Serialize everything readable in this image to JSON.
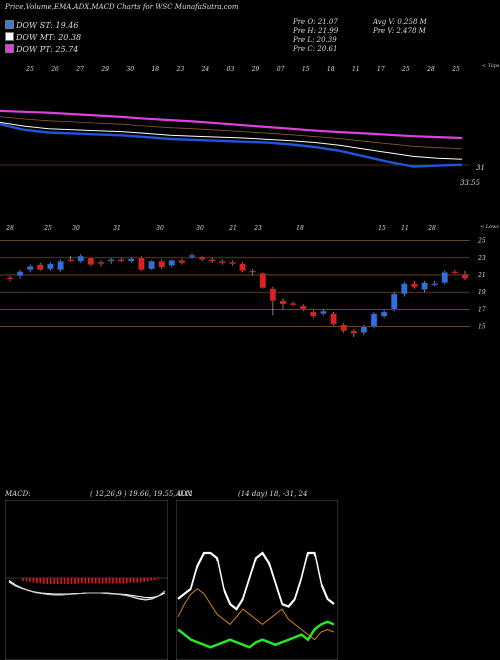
{
  "header": {
    "title": "Price,Volume,EMA,ADX,MACD Charts for WSC MunafaSutra.com",
    "pre_open": "Pre  O: 21.07",
    "pre_high": "Pre  H: 21.99",
    "pre_low": "Pre  L: 20.39",
    "pre_close": "Pre  C: 20.61",
    "avg_volume": "Avg V: 0.258  M",
    "pre_volume": "Pre  V: 2.478  M"
  },
  "legend": [
    {
      "label": "DOW ST: 19.46",
      "color": "#3a7bd5"
    },
    {
      "label": "DOW MT: 20.38",
      "color": "#ffffff"
    },
    {
      "label": "DOW PT: 25.74",
      "color": "#e040e0"
    }
  ],
  "colors": {
    "up": "#2f6fe0",
    "down": "#e02020",
    "ema_st": "#1e56d8",
    "ema_pt": "#e040e0",
    "macd_hist": "#e01818",
    "adx_pdi": "#22ee22",
    "adx_ndi": "#d08018"
  },
  "ema_panel": {
    "corner_label": "< Tops",
    "date_labels": [
      "25",
      "26",
      "27",
      "29",
      "30",
      "18",
      "23",
      "24",
      "03",
      "29",
      "07",
      "15",
      "18",
      "11",
      "17",
      "25",
      "28",
      "25"
    ],
    "right_labels": [
      "31",
      "33.55"
    ],
    "chart_data": {
      "type": "line",
      "series": [
        {
          "name": "DOW PT: 25.74",
          "values": [
            39.5,
            39.3,
            39.1,
            38.8,
            38.5,
            38.2,
            37.8,
            37.5,
            37.2,
            36.8,
            36.4,
            36.0,
            35.6,
            35.2,
            34.9,
            34.6,
            34.3,
            34.0,
            33.8,
            33.6
          ]
        },
        {
          "name": "DOW MT: 20.38",
          "values": [
            37.0,
            36.2,
            35.6,
            35.4,
            35.2,
            35.0,
            34.6,
            34.2,
            34.0,
            33.8,
            33.6,
            33.3,
            33.0,
            32.6,
            32.0,
            31.2,
            30.4,
            29.6,
            29.2,
            29.0
          ]
        },
        {
          "name": "DOW ST: 19.46",
          "values": [
            36.6,
            35.4,
            34.8,
            34.6,
            34.4,
            34.2,
            33.8,
            33.4,
            33.2,
            33.0,
            32.8,
            32.6,
            32.2,
            31.6,
            30.8,
            29.6,
            28.4,
            27.4,
            27.6,
            27.8
          ]
        }
      ]
    }
  },
  "price_panel": {
    "corner_label": "< Lows",
    "y_ticks": [
      "25",
      "23",
      "21",
      "19",
      "17",
      "15"
    ],
    "date_labels": [
      "28",
      "25",
      "30",
      "31",
      "30",
      "30",
      "21",
      "23",
      "18",
      "15",
      "11",
      "28"
    ],
    "chart_data": {
      "type": "candlestick",
      "ylim": [
        13.5,
        26
      ],
      "candles": [
        {
          "o": 20.5,
          "c": 20.7,
          "h": 20.9,
          "l": 20.3,
          "up": false
        },
        {
          "o": 20.9,
          "c": 21.4,
          "h": 21.6,
          "l": 20.6,
          "up": true
        },
        {
          "o": 21.6,
          "c": 22.0,
          "h": 22.2,
          "l": 21.3,
          "up": true
        },
        {
          "o": 22.2,
          "c": 21.6,
          "h": 22.4,
          "l": 21.5,
          "up": false
        },
        {
          "o": 21.7,
          "c": 22.3,
          "h": 22.5,
          "l": 21.5,
          "up": true
        },
        {
          "o": 21.6,
          "c": 22.6,
          "h": 22.8,
          "l": 21.4,
          "up": true
        },
        {
          "o": 22.8,
          "c": 22.7,
          "h": 23.2,
          "l": 22.5,
          "up": false
        },
        {
          "o": 23.2,
          "c": 22.6,
          "h": 23.4,
          "l": 22.4,
          "up": true
        },
        {
          "o": 23.0,
          "c": 22.2,
          "h": 23.1,
          "l": 22.0,
          "up": false
        },
        {
          "o": 22.3,
          "c": 22.5,
          "h": 22.7,
          "l": 22.0,
          "up": false
        },
        {
          "o": 22.6,
          "c": 22.8,
          "h": 23.0,
          "l": 22.3,
          "up": true
        },
        {
          "o": 22.8,
          "c": 22.7,
          "h": 23.0,
          "l": 22.5,
          "up": false
        },
        {
          "o": 22.6,
          "c": 22.9,
          "h": 23.0,
          "l": 22.4,
          "up": true
        },
        {
          "o": 23.0,
          "c": 21.6,
          "h": 23.2,
          "l": 21.5,
          "up": false
        },
        {
          "o": 21.7,
          "c": 22.6,
          "h": 22.7,
          "l": 21.6,
          "up": true
        },
        {
          "o": 22.6,
          "c": 21.9,
          "h": 22.8,
          "l": 21.7,
          "up": false
        },
        {
          "o": 22.1,
          "c": 22.7,
          "h": 22.8,
          "l": 21.9,
          "up": true
        },
        {
          "o": 22.7,
          "c": 22.4,
          "h": 22.9,
          "l": 22.2,
          "up": false
        },
        {
          "o": 23.1,
          "c": 23.3,
          "h": 23.5,
          "l": 22.9,
          "up": true
        },
        {
          "o": 23.1,
          "c": 22.8,
          "h": 23.2,
          "l": 22.6,
          "up": false
        },
        {
          "o": 22.8,
          "c": 22.6,
          "h": 23.0,
          "l": 22.4,
          "up": false
        },
        {
          "o": 22.6,
          "c": 22.4,
          "h": 22.8,
          "l": 22.2,
          "up": false
        },
        {
          "o": 22.5,
          "c": 22.3,
          "h": 22.7,
          "l": 22.1,
          "up": false
        },
        {
          "o": 22.3,
          "c": 21.5,
          "h": 22.5,
          "l": 21.3,
          "up": false
        },
        {
          "o": 21.5,
          "c": 21.3,
          "h": 21.7,
          "l": 21.0,
          "up": false
        },
        {
          "o": 21.2,
          "c": 19.5,
          "h": 21.3,
          "l": 19.4,
          "up": false
        },
        {
          "o": 19.4,
          "c": 18.0,
          "h": 19.6,
          "l": 16.3,
          "up": false
        },
        {
          "o": 18.0,
          "c": 17.6,
          "h": 18.3,
          "l": 17.0,
          "up": false
        },
        {
          "o": 17.7,
          "c": 17.6,
          "h": 17.9,
          "l": 17.4,
          "up": false
        },
        {
          "o": 17.4,
          "c": 17.0,
          "h": 17.6,
          "l": 16.8,
          "up": false
        },
        {
          "o": 16.7,
          "c": 16.2,
          "h": 16.9,
          "l": 16.0,
          "up": false
        },
        {
          "o": 16.8,
          "c": 16.5,
          "h": 17.0,
          "l": 16.3,
          "up": true
        },
        {
          "o": 16.5,
          "c": 15.3,
          "h": 16.7,
          "l": 15.1,
          "up": false
        },
        {
          "o": 15.2,
          "c": 14.5,
          "h": 15.4,
          "l": 14.3,
          "up": false
        },
        {
          "o": 14.5,
          "c": 14.2,
          "h": 14.7,
          "l": 13.8,
          "up": false
        },
        {
          "o": 14.3,
          "c": 15.0,
          "h": 15.2,
          "l": 14.0,
          "up": true
        },
        {
          "o": 15.0,
          "c": 16.5,
          "h": 16.7,
          "l": 14.8,
          "up": true
        },
        {
          "o": 16.2,
          "c": 16.7,
          "h": 16.9,
          "l": 16.0,
          "up": true
        },
        {
          "o": 17.0,
          "c": 18.8,
          "h": 19.0,
          "l": 16.8,
          "up": true
        },
        {
          "o": 18.8,
          "c": 20.0,
          "h": 20.2,
          "l": 18.5,
          "up": true
        },
        {
          "o": 20.0,
          "c": 19.6,
          "h": 20.3,
          "l": 19.4,
          "up": false
        },
        {
          "o": 19.3,
          "c": 20.1,
          "h": 20.3,
          "l": 19.0,
          "up": true
        },
        {
          "o": 20.0,
          "c": 20.0,
          "h": 20.3,
          "l": 19.7,
          "up": true
        },
        {
          "o": 20.1,
          "c": 21.3,
          "h": 21.5,
          "l": 19.9,
          "up": true
        },
        {
          "o": 21.4,
          "c": 21.3,
          "h": 21.6,
          "l": 21.1,
          "up": false
        },
        {
          "o": 21.1,
          "c": 20.6,
          "h": 21.5,
          "l": 20.4,
          "up": false
        }
      ]
    }
  },
  "macd_panel": {
    "title": "MACD:",
    "params": "( 12,26,9 ) 19.66,  19.55,  0.11",
    "chart_data": {
      "type": "line",
      "ylim": [
        -6,
        2
      ],
      "series": [
        {
          "name": "macd",
          "values": [
            -0.5,
            -1.4,
            -2.0,
            -2.5,
            -2.9,
            -3.1,
            -3.3,
            -3.4,
            -3.4,
            -3.3,
            -3.2,
            -3.1,
            -3.0,
            -3.0,
            -3.0,
            -3.1,
            -3.2,
            -3.3,
            -3.5,
            -3.8,
            -4.2,
            -4.4,
            -4.2,
            -3.6,
            -2.6
          ]
        },
        {
          "name": "signal",
          "values": [
            -0.8,
            -1.6,
            -2.1,
            -2.5,
            -2.8,
            -3.0,
            -3.1,
            -3.2,
            -3.2,
            -3.2,
            -3.1,
            -3.1,
            -3.0,
            -3.0,
            -3.0,
            -3.0,
            -3.1,
            -3.2,
            -3.3,
            -3.5,
            -3.7,
            -3.9,
            -3.9,
            -3.6,
            -3.0
          ]
        },
        {
          "name": "hist",
          "values": [
            -0.5,
            -0.6,
            -0.8,
            -0.9,
            -1.0,
            -1.0,
            -1.0,
            -1.0,
            -1.0,
            -1.0,
            -0.9,
            -0.9,
            -0.9,
            -0.9,
            -0.9,
            -0.9,
            -0.9,
            -0.9,
            -0.9,
            -0.8,
            -0.8,
            -0.7,
            -0.6,
            -0.4,
            -0.2
          ]
        }
      ]
    }
  },
  "adx_panel": {
    "title": "ADX",
    "params": "(14  day) 18,  -31,  24",
    "chart_data": {
      "type": "line",
      "ylim": [
        0,
        60
      ],
      "series": [
        {
          "name": "adx",
          "values": [
            22,
            24,
            26,
            35,
            40,
            40,
            38,
            26,
            20,
            18,
            22,
            30,
            38,
            40,
            36,
            28,
            20,
            19,
            22,
            30,
            40,
            40,
            28,
            22,
            20
          ]
        },
        {
          "name": "+di",
          "values": [
            10,
            8,
            6,
            5,
            4,
            3,
            4,
            5,
            6,
            5,
            4,
            3,
            5,
            6,
            5,
            4,
            5,
            6,
            7,
            8,
            6,
            10,
            12,
            13,
            12
          ]
        },
        {
          "name": "-di",
          "values": [
            15,
            20,
            24,
            26,
            24,
            20,
            16,
            14,
            12,
            15,
            18,
            16,
            14,
            12,
            14,
            16,
            18,
            14,
            12,
            10,
            8,
            6,
            9,
            10,
            9
          ]
        }
      ]
    }
  }
}
